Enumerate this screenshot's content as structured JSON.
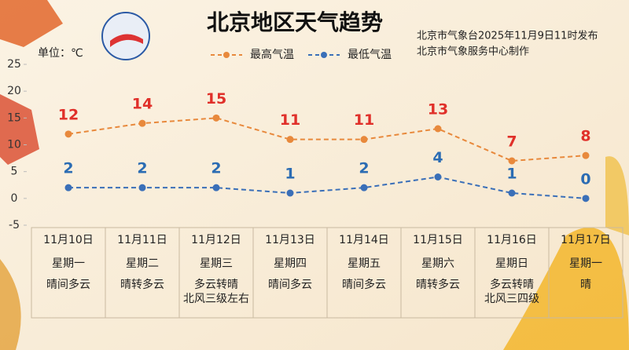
{
  "chart_data": {
    "type": "line",
    "title": "北京地区天气趋势",
    "unit_label": "单位：℃",
    "source": [
      "北京市气象台2025年11月9日11时发布",
      "北京市气象服务中心制作"
    ],
    "categories": [
      "11月10日",
      "11月11日",
      "11月12日",
      "11月13日",
      "11月14日",
      "11月15日",
      "11月16日",
      "11月17日"
    ],
    "weekdays": [
      "星期一",
      "星期二",
      "星期三",
      "星期四",
      "星期五",
      "星期六",
      "星期日",
      "星期一"
    ],
    "conditions": [
      [
        "晴间多云"
      ],
      [
        "晴转多云"
      ],
      [
        "多云转晴",
        "北风三级左右"
      ],
      [
        "晴间多云"
      ],
      [
        "晴间多云"
      ],
      [
        "晴转多云"
      ],
      [
        "多云转晴",
        "北风三四级"
      ],
      [
        "晴"
      ]
    ],
    "series": [
      {
        "name": "最高气温",
        "color": "#e8893c",
        "label_color": "#e0302a",
        "values": [
          12,
          14,
          15,
          11,
          11,
          13,
          7,
          8
        ]
      },
      {
        "name": "最低气温",
        "color": "#3a6fb8",
        "label_color": "#2b6cb3",
        "values": [
          2,
          2,
          2,
          1,
          2,
          4,
          1,
          0
        ]
      }
    ],
    "ylim": [
      -5,
      25
    ],
    "yticks": [
      -5,
      0,
      5,
      10,
      15,
      20,
      25
    ]
  }
}
